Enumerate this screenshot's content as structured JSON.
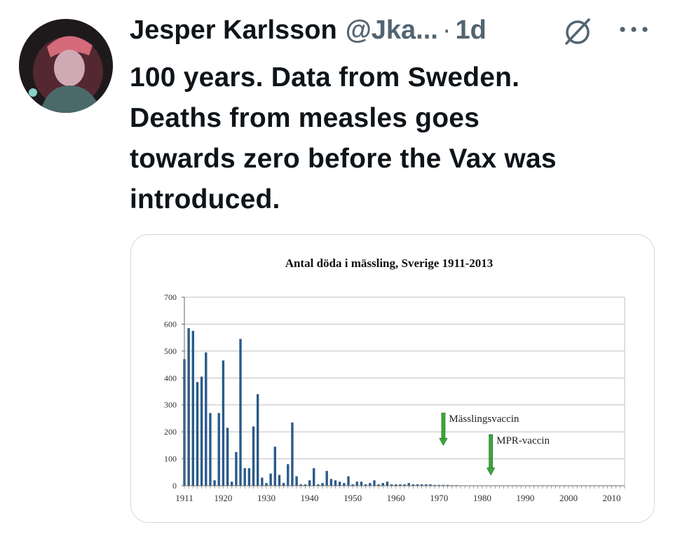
{
  "tweet": {
    "author_name": "Jesper Karlsson",
    "handle": "@Jka...",
    "separator": "·",
    "time": "1d",
    "text_lines": [
      "100 years. Data from Sweden.",
      "Deaths from measles goes",
      "towards zero before the Vax was",
      "introduced."
    ]
  },
  "icons": {
    "avatar": "avatar",
    "grok": "grok-icon",
    "more": "more-icon"
  },
  "chart_data": {
    "type": "bar",
    "title": "Antal döda i mässling, Sverige 1911-2013",
    "xlabel": "",
    "ylabel": "",
    "ylim": [
      0,
      700
    ],
    "yticks": [
      0,
      100,
      200,
      300,
      400,
      500,
      600,
      700
    ],
    "xticks": [
      1911,
      1920,
      1930,
      1940,
      1950,
      1960,
      1970,
      1980,
      1990,
      2000,
      2010
    ],
    "xlim": [
      1911,
      2013
    ],
    "grid": true,
    "bar_color": "#2a5a8a",
    "x": [
      1911,
      1912,
      1913,
      1914,
      1915,
      1916,
      1917,
      1918,
      1919,
      1920,
      1921,
      1922,
      1923,
      1924,
      1925,
      1926,
      1927,
      1928,
      1929,
      1930,
      1931,
      1932,
      1933,
      1934,
      1935,
      1936,
      1937,
      1938,
      1939,
      1940,
      1941,
      1942,
      1943,
      1944,
      1945,
      1946,
      1947,
      1948,
      1949,
      1950,
      1951,
      1952,
      1953,
      1954,
      1955,
      1956,
      1957,
      1958,
      1959,
      1960,
      1961,
      1962,
      1963,
      1964,
      1965,
      1966,
      1967,
      1968,
      1969,
      1970,
      1971,
      1972,
      1973,
      1974,
      1975,
      1976,
      1977,
      1978,
      1979,
      1980,
      1981,
      1982,
      1983,
      1984,
      1985,
      1986,
      1987,
      1988,
      1989,
      1990,
      1991,
      1992,
      1993,
      1994,
      1995,
      1996,
      1997,
      1998,
      1999,
      2000,
      2001,
      2002,
      2003,
      2004,
      2005,
      2006,
      2007,
      2008,
      2009,
      2010,
      2011,
      2012,
      2013
    ],
    "values": [
      470,
      585,
      575,
      385,
      405,
      495,
      270,
      20,
      270,
      465,
      215,
      15,
      125,
      545,
      65,
      65,
      220,
      340,
      30,
      10,
      45,
      145,
      40,
      10,
      80,
      235,
      35,
      5,
      5,
      20,
      65,
      5,
      10,
      55,
      25,
      20,
      15,
      10,
      35,
      5,
      15,
      15,
      5,
      10,
      20,
      5,
      10,
      15,
      5,
      5,
      5,
      5,
      10,
      5,
      5,
      5,
      5,
      5,
      3,
      3,
      3,
      3,
      2,
      2,
      1,
      1,
      1,
      1,
      1,
      1,
      0,
      0,
      0,
      0,
      0,
      0,
      0,
      0,
      0,
      0,
      0,
      0,
      0,
      0,
      0,
      0,
      0,
      0,
      0,
      0,
      0,
      0,
      0,
      0,
      0,
      0,
      0,
      0,
      0,
      0,
      0,
      0,
      0
    ],
    "annotations": [
      {
        "text": "Mässlingsvaccin",
        "x": 1971,
        "arrow_from_y": 270,
        "arrow_to_y": 150,
        "color": "#3aa83a"
      },
      {
        "text": "MPR-vaccin",
        "x": 1982,
        "arrow_from_y": 190,
        "arrow_to_y": 40,
        "color": "#3aa83a"
      }
    ]
  }
}
